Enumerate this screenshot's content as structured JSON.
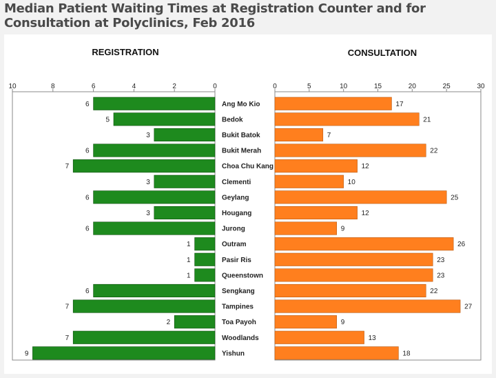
{
  "title": "Median Patient Waiting Times at Registration Counter and for Consultation at Polyclinics, Feb 2016",
  "colors": {
    "registration": "#1e8a1e",
    "consultation": "#ff7f1e",
    "axis": "#888888"
  },
  "chart_data": [
    {
      "type": "bar",
      "orientation": "horizontal",
      "direction": "right-to-left",
      "title": "REGISTRATION",
      "xlim": [
        0,
        10
      ],
      "ticks": [
        0,
        2,
        4,
        6,
        8,
        10
      ],
      "categories": [
        "Ang Mo Kio",
        "Bedok",
        "Bukit Batok",
        "Bukit Merah",
        "Choa Chu Kang",
        "Clementi",
        "Geylang",
        "Hougang",
        "Jurong",
        "Outram",
        "Pasir Ris",
        "Queenstown",
        "Sengkang",
        "Tampines",
        "Toa Payoh",
        "Woodlands",
        "Yishun"
      ],
      "values": [
        6,
        5,
        3,
        6,
        7,
        3,
        6,
        3,
        6,
        1,
        1,
        1,
        6,
        7,
        2,
        7,
        9
      ]
    },
    {
      "type": "bar",
      "orientation": "horizontal",
      "title": "CONSULTATION",
      "xlim": [
        0,
        30
      ],
      "ticks": [
        0,
        5,
        10,
        15,
        20,
        25,
        30
      ],
      "categories": [
        "Ang Mo Kio",
        "Bedok",
        "Bukit Batok",
        "Bukit Merah",
        "Choa Chu Kang",
        "Clementi",
        "Geylang",
        "Hougang",
        "Jurong",
        "Outram",
        "Pasir Ris",
        "Queenstown",
        "Sengkang",
        "Tampines",
        "Toa Payoh",
        "Woodlands",
        "Yishun"
      ],
      "values": [
        17,
        21,
        7,
        22,
        12,
        10,
        25,
        12,
        9,
        26,
        23,
        23,
        22,
        27,
        9,
        13,
        18
      ]
    }
  ]
}
